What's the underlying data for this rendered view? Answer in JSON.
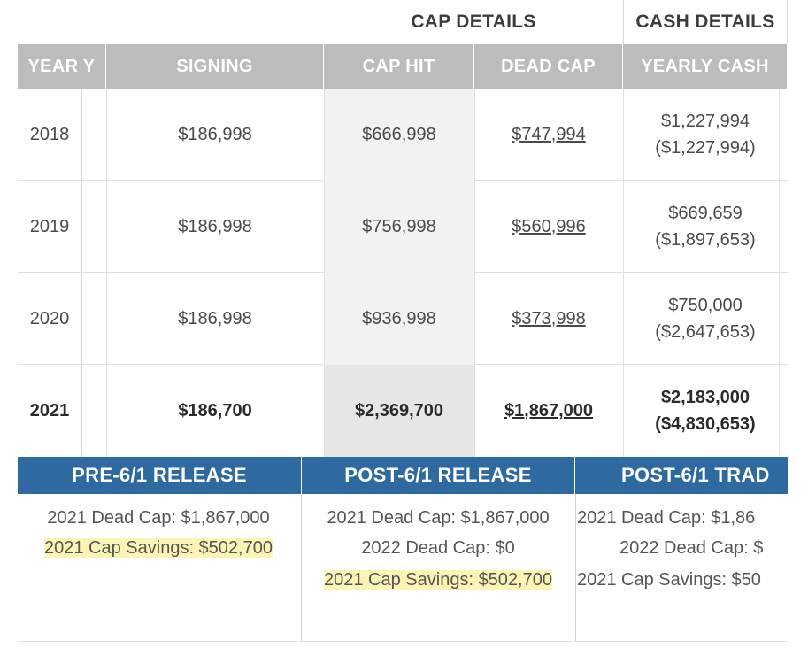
{
  "groups": {
    "cap_details": "CAP DETAILS",
    "cash_details": "CASH DETAILS"
  },
  "headers": {
    "year": "YEAR Y",
    "signing": "SIGNING",
    "cap_hit": "CAP HIT",
    "dead_cap": "DEAD CAP",
    "yearly_cash": "YEARLY CASH"
  },
  "rows": [
    {
      "year": "2018",
      "signing": "$186,998",
      "cap_hit": "$666,998",
      "dead_cap": "$747,994",
      "cash": "$1,227,994",
      "cash_total": "($1,227,994)"
    },
    {
      "year": "2019",
      "signing": "$186,998",
      "cap_hit": "$756,998",
      "dead_cap": "$560,996",
      "cash": "$669,659",
      "cash_total": "($1,897,653)"
    },
    {
      "year": "2020",
      "signing": "$186,998",
      "cap_hit": "$936,998",
      "dead_cap": "$373,998",
      "cash": "$750,000",
      "cash_total": "($2,647,653)"
    },
    {
      "year": "2021",
      "signing": "$186,700",
      "cap_hit": "$2,369,700",
      "dead_cap": "$1,867,000",
      "cash": "$2,183,000",
      "cash_total": "($4,830,653)"
    }
  ],
  "release": {
    "pre": {
      "title": "PRE-6/1 RELEASE",
      "dead_cap": "2021 Dead Cap: $1,867,000",
      "savings": "2021 Cap Savings: $502,700"
    },
    "post": {
      "title": "POST-6/1 RELEASE",
      "dead_cap": "2021 Dead Cap: $1,867,000",
      "dead_cap_2022": "2022 Dead Cap: $0",
      "savings": "2021 Cap Savings: $502,700"
    },
    "trade": {
      "title": "POST-6/1 TRAD",
      "dead_cap": "2021 Dead Cap: $1,86",
      "dead_cap_2022": "2022 Dead Cap: $",
      "savings": "2021 Cap Savings: $50"
    }
  }
}
